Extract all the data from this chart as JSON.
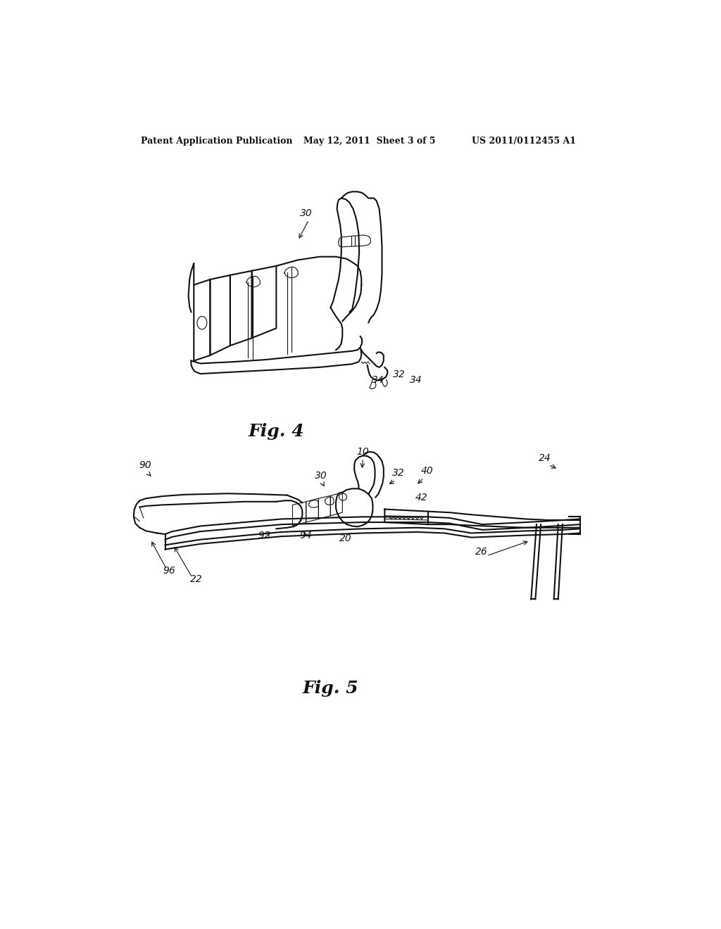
{
  "background_color": "#ffffff",
  "header_left": "Patent Application Publication",
  "header_mid": "May 12, 2011  Sheet 3 of 5",
  "header_right": "US 2011/0112455 A1",
  "fig4_label": "Fig. 4",
  "fig5_label": "Fig. 5",
  "line_color": "#111111",
  "label_color": "#111111",
  "lw": 1.5,
  "lw_thin": 0.8
}
